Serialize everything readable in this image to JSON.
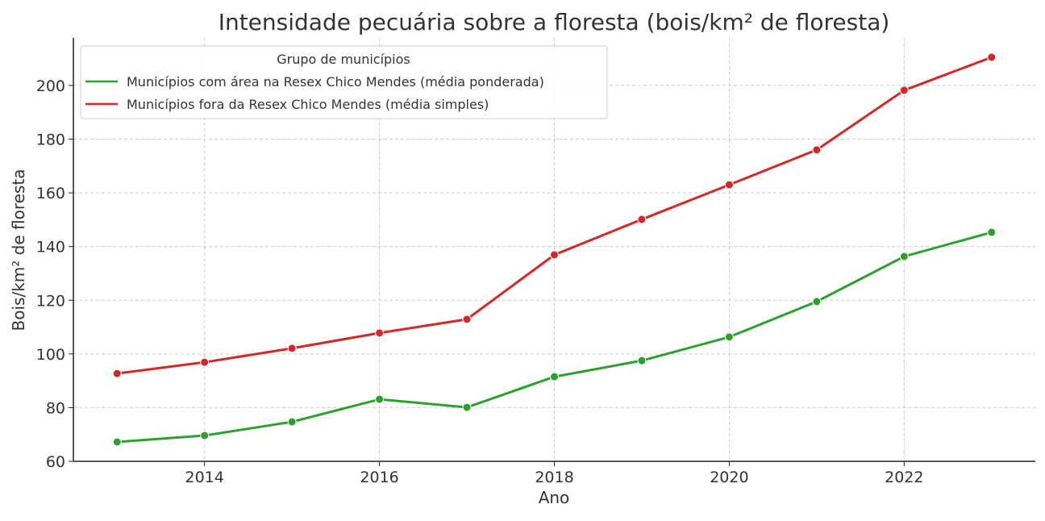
{
  "chart_data": {
    "type": "line",
    "title": "Intensidade pecuária sobre a floresta (bois/km² de floresta)",
    "xlabel": "Ano",
    "ylabel": "Bois/km² de floresta",
    "xlim": [
      2012.5,
      2023.5
    ],
    "ylim": [
      60,
      217.7
    ],
    "xticks": [
      2014,
      2016,
      2018,
      2020,
      2022
    ],
    "yticks": [
      60,
      80,
      100,
      120,
      140,
      160,
      180,
      200
    ],
    "grid": true,
    "legend": {
      "title": "Grupo de municípios",
      "placement": "top-left"
    },
    "x": [
      2013,
      2014,
      2015,
      2016,
      2017,
      2018,
      2019,
      2020,
      2021,
      2022,
      2023
    ],
    "series": [
      {
        "name": "Municípios com área na Resex Chico Mendes (média ponderada)",
        "color": "#2ca02c",
        "values": [
          67.2,
          69.6,
          74.7,
          83.1,
          80.1,
          91.5,
          97.5,
          106.3,
          119.5,
          136.3,
          145.3
        ]
      },
      {
        "name": "Municípios fora da Resex Chico Mendes (média simples)",
        "color": "#d62728",
        "values": [
          92.7,
          96.9,
          102.1,
          107.8,
          112.9,
          136.9,
          150.1,
          163.0,
          176.0,
          198.2,
          210.5
        ]
      }
    ]
  }
}
